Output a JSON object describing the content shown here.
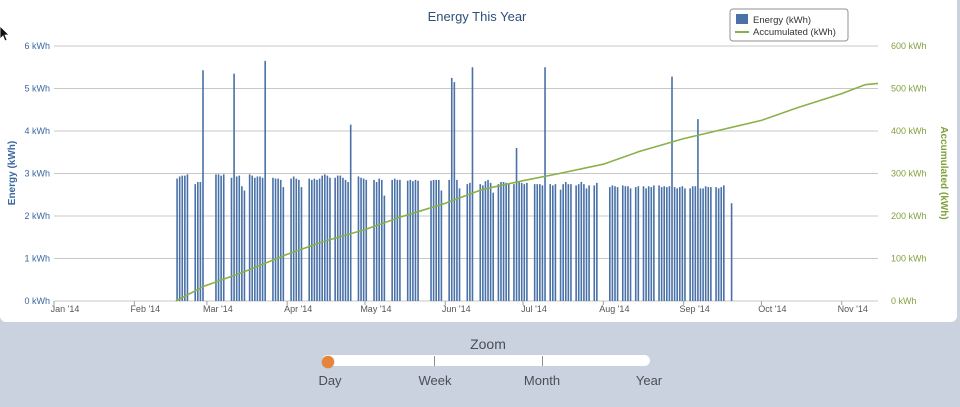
{
  "chart_data": {
    "type": "bar+line",
    "title": "Energy This Year",
    "xlabel": "",
    "x_tick_labels": [
      "Jan '14",
      "Feb '14",
      "Mar '14",
      "Apr '14",
      "May '14",
      "Jun '14",
      "Jul '14",
      "Aug '14",
      "Sep '14",
      "Oct '14",
      "Nov '14"
    ],
    "x_range": [
      "2014-01-01",
      "2014-11-15"
    ],
    "y_left": {
      "label": "Energy (kWh)",
      "range": [
        0,
        6
      ],
      "tick_labels": [
        "0 kWh",
        "1 kWh",
        "2 kWh",
        "3 kWh",
        "4 kWh",
        "5 kWh",
        "6 kWh"
      ]
    },
    "y_right": {
      "label": "Accumulated (kWh)",
      "range": [
        0,
        600
      ],
      "tick_labels": [
        "0 kWh",
        "100 kWh",
        "200 kWh",
        "300 kWh",
        "400 kWh",
        "500 kWh",
        "600 kWh"
      ]
    },
    "grid": true,
    "legend_placement": "top-right",
    "series": [
      {
        "name": "Energy (kWh)",
        "type": "bar",
        "color": "#4a72a8",
        "axis": "left",
        "start_date": "2014-02-17",
        "values": [
          2.88,
          2.93,
          2.95,
          2.95,
          2.98,
          0,
          0,
          2.75,
          2.8,
          2.8,
          5.43,
          0,
          0,
          0,
          0,
          2.98,
          2.98,
          2.95,
          2.98,
          0,
          0,
          2.9,
          5.35,
          2.93,
          2.95,
          2.7,
          2.6,
          0,
          2.98,
          2.95,
          2.9,
          2.93,
          2.93,
          2.9,
          5.65,
          0,
          0,
          2.9,
          2.88,
          2.88,
          2.85,
          2.68,
          0,
          0,
          2.88,
          2.93,
          2.88,
          2.85,
          2.68,
          0,
          0,
          2.88,
          2.85,
          2.88,
          2.85,
          2.88,
          2.95,
          2.98,
          2.95,
          2.9,
          0,
          2.9,
          2.95,
          2.95,
          2.9,
          2.85,
          2.8,
          4.15,
          0,
          0,
          2.93,
          2.9,
          2.88,
          2.85,
          0,
          0,
          2.85,
          2.8,
          2.88,
          2.85,
          2.48,
          0,
          0,
          2.85,
          2.88,
          2.85,
          2.85,
          0,
          0,
          2.83,
          2.85,
          2.82,
          2.85,
          2.83,
          0,
          0,
          0,
          0,
          2.83,
          2.85,
          2.85,
          2.85,
          2.6,
          0,
          0,
          2.85,
          5.25,
          5.15,
          2.85,
          2.65,
          0,
          0,
          2.75,
          2.78,
          5.5,
          0,
          0,
          2.75,
          2.72,
          2.82,
          2.85,
          2.78,
          2.55,
          0,
          2.75,
          2.8,
          2.8,
          2.78,
          2.75,
          0,
          2.75,
          3.6,
          2.8,
          2.78,
          2.75,
          2.78,
          0,
          0,
          2.75,
          2.75,
          2.75,
          2.72,
          5.5,
          0,
          2.75,
          2.72,
          2.75,
          0,
          2.62,
          2.75,
          2.8,
          2.75,
          2.75,
          0,
          2.72,
          2.75,
          2.8,
          2.75,
          2.65,
          2.72,
          0,
          2.72,
          2.78,
          0,
          0,
          0,
          0,
          2.68,
          2.72,
          2.7,
          2.68,
          0,
          2.72,
          2.7,
          2.7,
          2.65,
          0,
          2.68,
          2.7,
          0,
          2.7,
          2.65,
          2.7,
          2.68,
          2.72,
          0,
          2.72,
          2.68,
          2.7,
          2.68,
          2.7,
          5.28,
          2.68,
          2.65,
          2.68,
          2.7,
          2.65,
          0,
          2.65,
          2.7,
          2.7,
          4.28,
          2.65,
          2.65,
          2.7,
          2.68,
          2.68,
          0,
          2.68,
          2.65,
          2.68,
          2.72,
          0,
          0,
          2.3
        ]
      },
      {
        "name": "Accumulated (kWh)",
        "type": "line",
        "color": "#8ab04a",
        "axis": "right",
        "points": [
          [
            "2014-02-17",
            0
          ],
          [
            "2014-02-28",
            35
          ],
          [
            "2014-03-15",
            68
          ],
          [
            "2014-04-01",
            110
          ],
          [
            "2014-04-15",
            140
          ],
          [
            "2014-05-01",
            168
          ],
          [
            "2014-05-15",
            198
          ],
          [
            "2014-06-01",
            230
          ],
          [
            "2014-06-15",
            262
          ],
          [
            "2014-07-01",
            283
          ],
          [
            "2014-07-15",
            300
          ],
          [
            "2014-08-01",
            322
          ],
          [
            "2014-08-15",
            352
          ],
          [
            "2014-09-01",
            382
          ],
          [
            "2014-09-15",
            402
          ],
          [
            "2014-10-01",
            425
          ],
          [
            "2014-10-15",
            455
          ],
          [
            "2014-11-01",
            488
          ],
          [
            "2014-11-10",
            509
          ],
          [
            "2014-11-15",
            512
          ]
        ]
      }
    ]
  },
  "zoom": {
    "title": "Zoom",
    "labels": [
      "Day",
      "Week",
      "Month",
      "Year"
    ],
    "selected": "Day"
  },
  "colors": {
    "bar": "#4a72a8",
    "line": "#8ab04a",
    "grid": "#c8c8c8",
    "handle": "#e8843a"
  }
}
